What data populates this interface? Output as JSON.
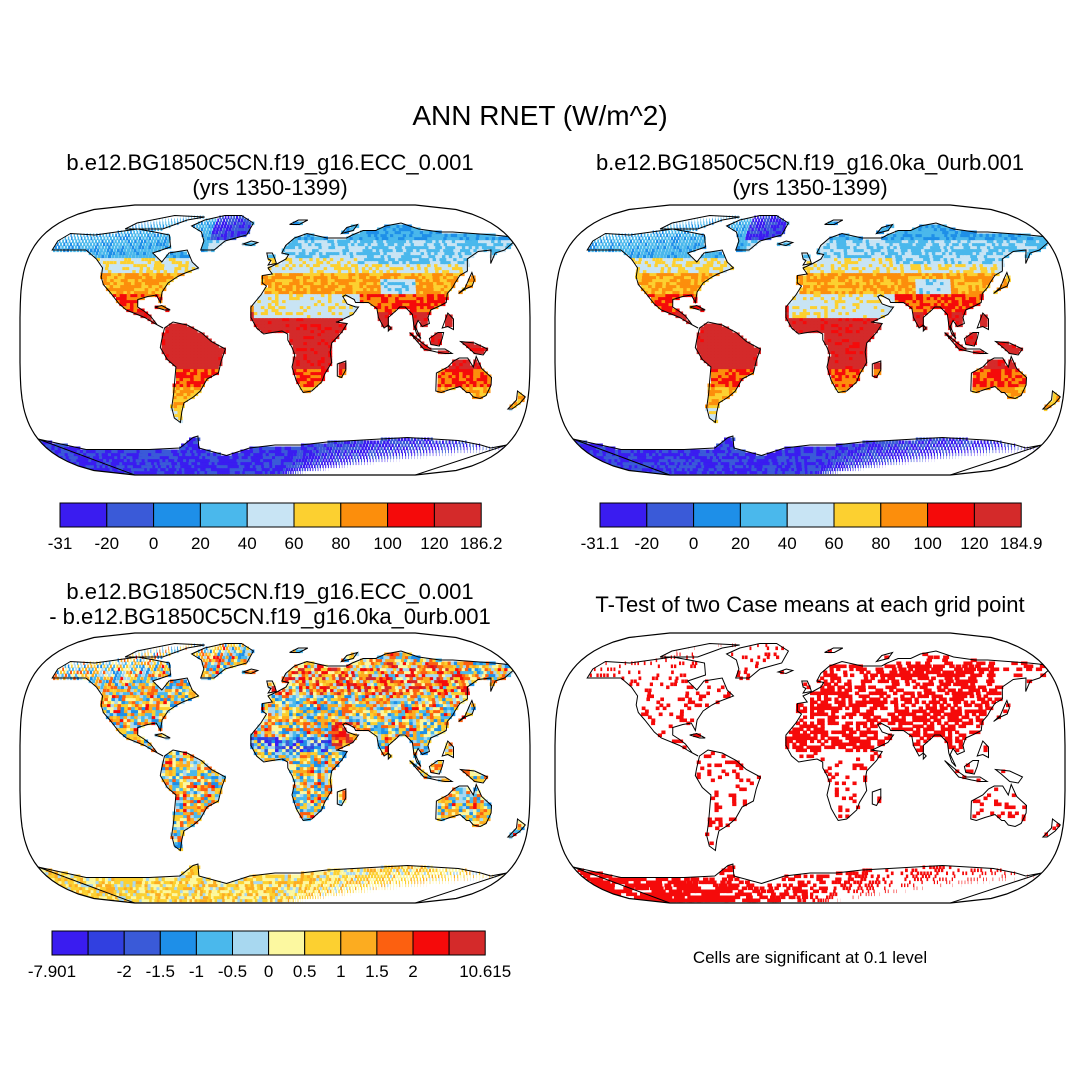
{
  "title": "ANN RNET (W/m^2)",
  "panels": [
    {
      "id": "case1",
      "title_line1": "b.e12.BG1850C5CN.f19_g16.ECC_0.001",
      "title_line2": "(yrs 1350-1399)",
      "kind": "absolute",
      "colorbar": {
        "colors": [
          "#3a1cf0",
          "#3a5ad8",
          "#1e8fe8",
          "#4ab8ec",
          "#c8e4f4",
          "#fcd030",
          "#fc8e0c",
          "#f50a0a",
          "#d42a2a"
        ],
        "labels": [
          "-31",
          "-20",
          "0",
          "20",
          "40",
          "60",
          "80",
          "100",
          "120",
          "186.2"
        ]
      }
    },
    {
      "id": "case2",
      "title_line1": "b.e12.BG1850C5CN.f19_g16.0ka_0urb.001",
      "title_line2": "(yrs 1350-1399)",
      "kind": "absolute",
      "colorbar": {
        "colors": [
          "#3a1cf0",
          "#3a5ad8",
          "#1e8fe8",
          "#4ab8ec",
          "#c8e4f4",
          "#fcd030",
          "#fc8e0c",
          "#f50a0a",
          "#d42a2a"
        ],
        "labels": [
          "-31.1",
          "-20",
          "0",
          "20",
          "40",
          "60",
          "80",
          "100",
          "120",
          "184.9"
        ]
      }
    },
    {
      "id": "difference",
      "title_line1": "b.e12.BG1850C5CN.f19_g16.ECC_0.001",
      "title_line2": "- b.e12.BG1850C5CN.f19_g16.0ka_0urb.001",
      "kind": "difference",
      "colorbar": {
        "colors": [
          "#3a1cf0",
          "#3140e0",
          "#3a5ad8",
          "#1e8fe8",
          "#4ab8ec",
          "#a8d8f0",
          "#fcf8a0",
          "#fcd030",
          "#fcac20",
          "#fc6010",
          "#f50a0a",
          "#d42a2a"
        ],
        "labels": [
          "-7.901",
          "",
          "-2",
          "-1.5",
          "-1",
          "-0.5",
          "0",
          "0.5",
          "1",
          "1.5",
          "2",
          "",
          "10.615"
        ]
      }
    },
    {
      "id": "ttest",
      "title_line1": "T-Test of two Case means at each grid point",
      "kind": "significance",
      "note": "Cells are significant at 0.1 level"
    }
  ]
}
